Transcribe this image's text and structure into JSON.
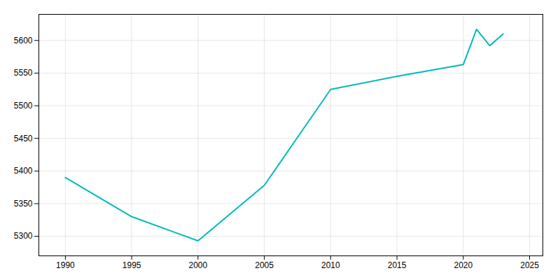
{
  "chart_data": {
    "type": "line",
    "x": [
      1990,
      1995,
      2000,
      2005,
      2010,
      2015,
      2020,
      2021,
      2022,
      2023
    ],
    "values": [
      5390,
      5330,
      5293,
      5378,
      5525,
      5545,
      5563,
      5617,
      5592,
      5610
    ],
    "color": "#00BABA",
    "xlim": [
      1988,
      2026
    ],
    "xticks": [
      1990,
      1995,
      2000,
      2005,
      2010,
      2015,
      2020,
      2025
    ],
    "ylim": [
      5270,
      5640
    ],
    "yticks": [
      5300,
      5350,
      5400,
      5450,
      5500,
      5550,
      5600
    ],
    "grid": true
  }
}
